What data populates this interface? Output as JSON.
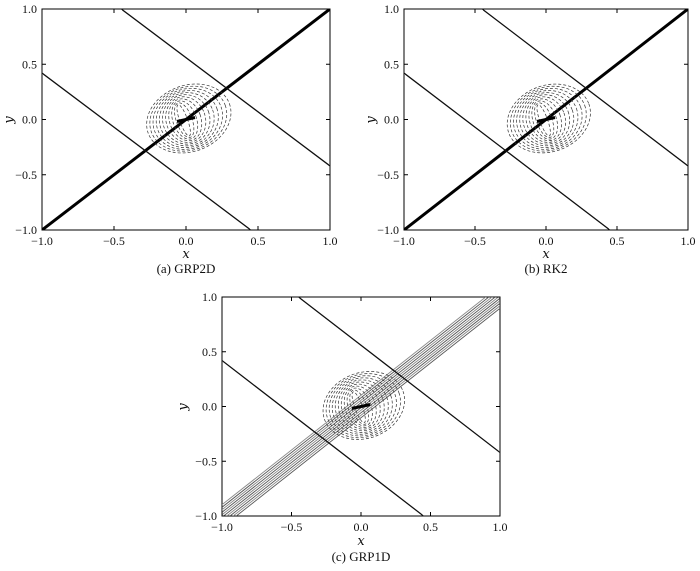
{
  "figure": {
    "panels": [
      {
        "id": "a",
        "caption": "(a) GRP2D",
        "xlabel": "x",
        "ylabel": "y",
        "x_ticks": [
          "−1.0",
          "−0.5",
          "0.0",
          "0.5",
          "1.0"
        ],
        "y_ticks": [
          "1.0",
          "0.5",
          "0.0",
          "−0.5",
          "−1.0"
        ],
        "diagonal_style": "thin"
      },
      {
        "id": "b",
        "caption": "(b) RK2",
        "xlabel": "x",
        "ylabel": "y",
        "x_ticks": [
          "−1.0",
          "−0.5",
          "0.0",
          "0.5",
          "1.0"
        ],
        "y_ticks": [
          "1.0",
          "0.5",
          "0.0",
          "−0.5",
          "−1.0"
        ],
        "diagonal_style": "thin"
      },
      {
        "id": "c",
        "caption": "(c) GRP1D",
        "xlabel": "x",
        "ylabel": "y",
        "x_ticks": [
          "−1.0",
          "−0.5",
          "0.0",
          "0.5",
          "1.0"
        ],
        "y_ticks": [
          "1.0",
          "0.5",
          "0.0",
          "−0.5",
          "−1.0"
        ],
        "diagonal_style": "smeared"
      }
    ]
  },
  "chart_data": [
    {
      "type": "contour",
      "panel": "a",
      "xlim": [
        -1.0,
        1.0
      ],
      "ylim": [
        -1.0,
        1.0
      ],
      "diagonal_line": {
        "from": [
          -1.0,
          -1.0
        ],
        "to": [
          1.0,
          1.0
        ]
      },
      "anti_diagonal_lines": [
        {
          "from": [
            -0.45,
            1.0
          ],
          "to": [
            1.0,
            -0.42
          ]
        },
        {
          "from": [
            -1.0,
            0.42
          ],
          "to": [
            0.45,
            -1.0
          ]
        }
      ],
      "vortex_center": [
        0.0,
        0.0
      ],
      "vortex_radius": 0.3
    },
    {
      "type": "contour",
      "panel": "b",
      "xlim": [
        -1.0,
        1.0
      ],
      "ylim": [
        -1.0,
        1.0
      ],
      "diagonal_line": {
        "from": [
          -1.0,
          -1.0
        ],
        "to": [
          1.0,
          1.0
        ]
      },
      "anti_diagonal_lines": [
        {
          "from": [
            -0.45,
            1.0
          ],
          "to": [
            1.0,
            -0.42
          ]
        },
        {
          "from": [
            -1.0,
            0.42
          ],
          "to": [
            0.45,
            -1.0
          ]
        }
      ],
      "vortex_center": [
        0.0,
        0.0
      ],
      "vortex_radius": 0.3
    },
    {
      "type": "contour",
      "panel": "c",
      "xlim": [
        -1.0,
        1.0
      ],
      "ylim": [
        -1.0,
        1.0
      ],
      "diagonal_line": {
        "from": [
          -1.0,
          -1.0
        ],
        "to": [
          1.0,
          1.0
        ]
      },
      "anti_diagonal_lines": [
        {
          "from": [
            -0.45,
            1.0
          ],
          "to": [
            1.0,
            -0.42
          ]
        },
        {
          "from": [
            -1.0,
            0.42
          ],
          "to": [
            0.45,
            -1.0
          ]
        }
      ],
      "vortex_center": [
        0.0,
        0.0
      ],
      "vortex_radius": 0.3
    }
  ]
}
